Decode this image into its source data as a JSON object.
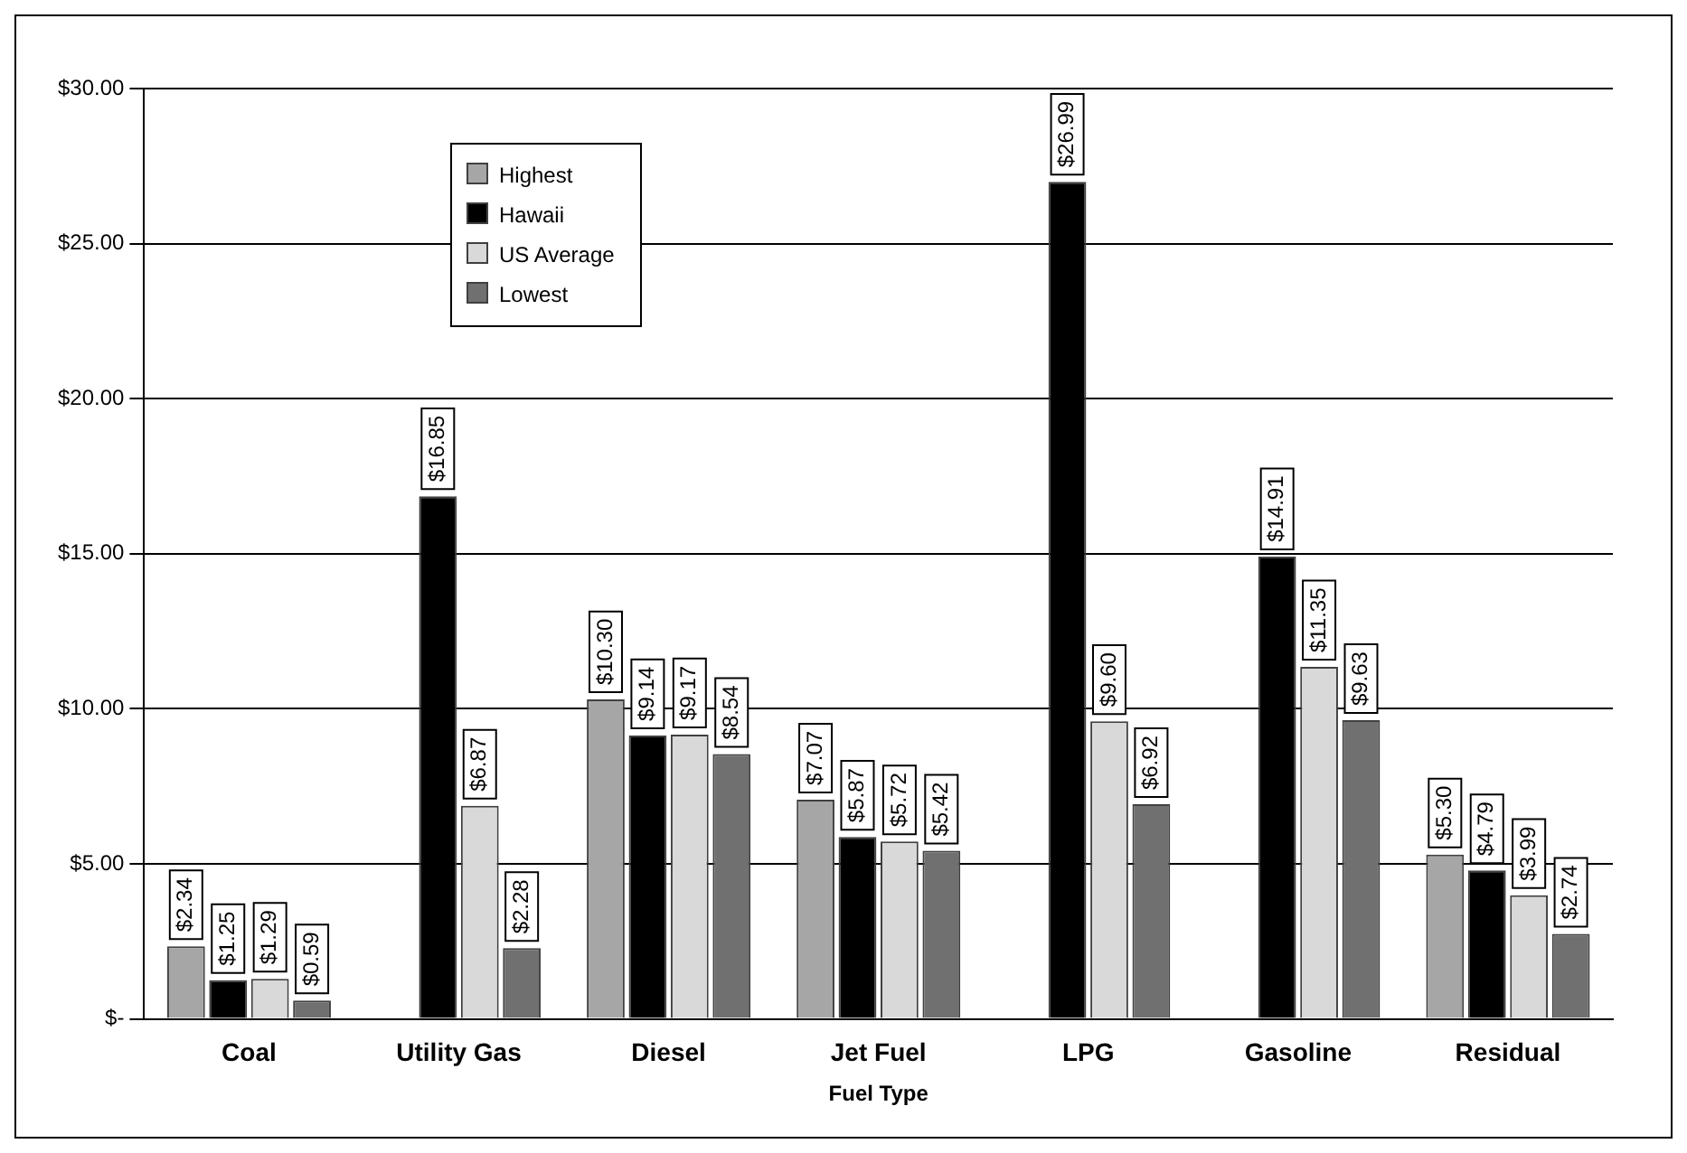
{
  "chart_data": {
    "type": "bar",
    "xlabel": "Fuel Type",
    "categories": [
      "Coal",
      "Utility Gas",
      "Diesel",
      "Jet Fuel",
      "LPG",
      "Gasoline",
      "Residual"
    ],
    "series": [
      {
        "name": "Highest",
        "color": "#a6a6a6",
        "values": [
          2.34,
          null,
          10.3,
          7.07,
          null,
          null,
          5.3
        ],
        "value_labels": [
          "$2.34",
          null,
          "$10.30",
          "$7.07",
          null,
          null,
          "$5.30"
        ]
      },
      {
        "name": "Hawaii",
        "color": "#000000",
        "values": [
          1.25,
          16.85,
          9.14,
          5.87,
          26.99,
          14.91,
          4.79
        ],
        "value_labels": [
          "$1.25",
          "$16.85",
          "$9.14",
          "$5.87",
          "$26.99",
          "$14.91",
          "$4.79"
        ]
      },
      {
        "name": "US Average",
        "color": "#d9d9d9",
        "values": [
          1.29,
          6.87,
          9.17,
          5.72,
          9.6,
          11.35,
          3.99
        ],
        "value_labels": [
          "$1.29",
          "$6.87",
          "$9.17",
          "$5.72",
          "$9.60",
          "$11.35",
          "$3.99"
        ]
      },
      {
        "name": "Lowest",
        "color": "#707070",
        "values": [
          0.59,
          2.28,
          8.54,
          5.42,
          6.92,
          9.63,
          2.74
        ],
        "value_labels": [
          "$0.59",
          "$2.28",
          "$8.54",
          "$5.42",
          "$6.92",
          "$9.63",
          "$2.74"
        ]
      }
    ],
    "ylim": [
      0,
      30
    ],
    "yticks": [
      {
        "value": 0,
        "label": "$-"
      },
      {
        "value": 5,
        "label": "$5.00"
      },
      {
        "value": 10,
        "label": "$10.00"
      },
      {
        "value": 15,
        "label": "$15.00"
      },
      {
        "value": 20,
        "label": "$20.00"
      },
      {
        "value": 25,
        "label": "$25.00"
      },
      {
        "value": 30,
        "label": "$30.00"
      }
    ],
    "grid": "y",
    "legend": "top left"
  }
}
